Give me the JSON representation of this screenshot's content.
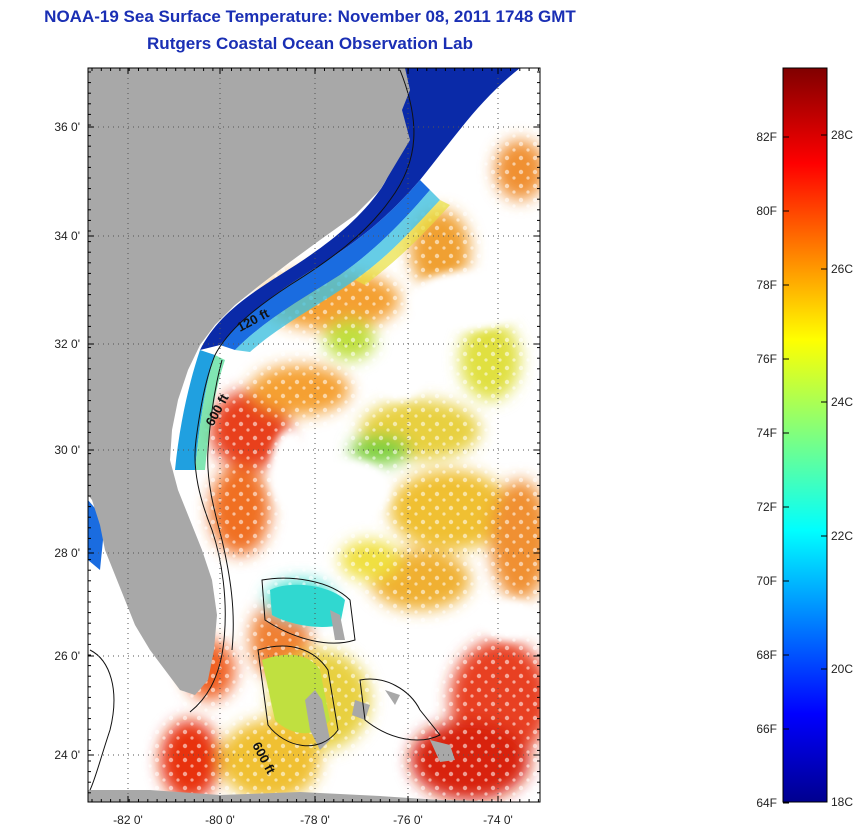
{
  "header": {
    "title": "NOAA-19 Sea Surface Temperature:  November 08, 2011 1748 GMT",
    "subtitle": "Rutgers Coastal Ocean Observation Lab"
  },
  "map": {
    "lat_labels": [
      "36 0'",
      "34 0'",
      "32 0'",
      "30 0'",
      "28 0'",
      "26 0'",
      "24 0'"
    ],
    "lon_labels": [
      "-82 0'",
      "-80 0'",
      "-78 0'",
      "-76 0'",
      "-74 0'"
    ],
    "contours": [
      "120 ft",
      "600 ft",
      "600 ft"
    ],
    "colors": {
      "land": "#a8a8a8",
      "cloud": "#ffffff",
      "cold": "#0a1a9a",
      "warm": "#e83010"
    }
  },
  "colorbar": {
    "fahrenheit": [
      "82F",
      "80F",
      "78F",
      "76F",
      "74F",
      "72F",
      "70F",
      "68F",
      "66F",
      "64F"
    ],
    "celsius": [
      "28C",
      "26C",
      "24C",
      "22C",
      "20C",
      "18C"
    ]
  }
}
